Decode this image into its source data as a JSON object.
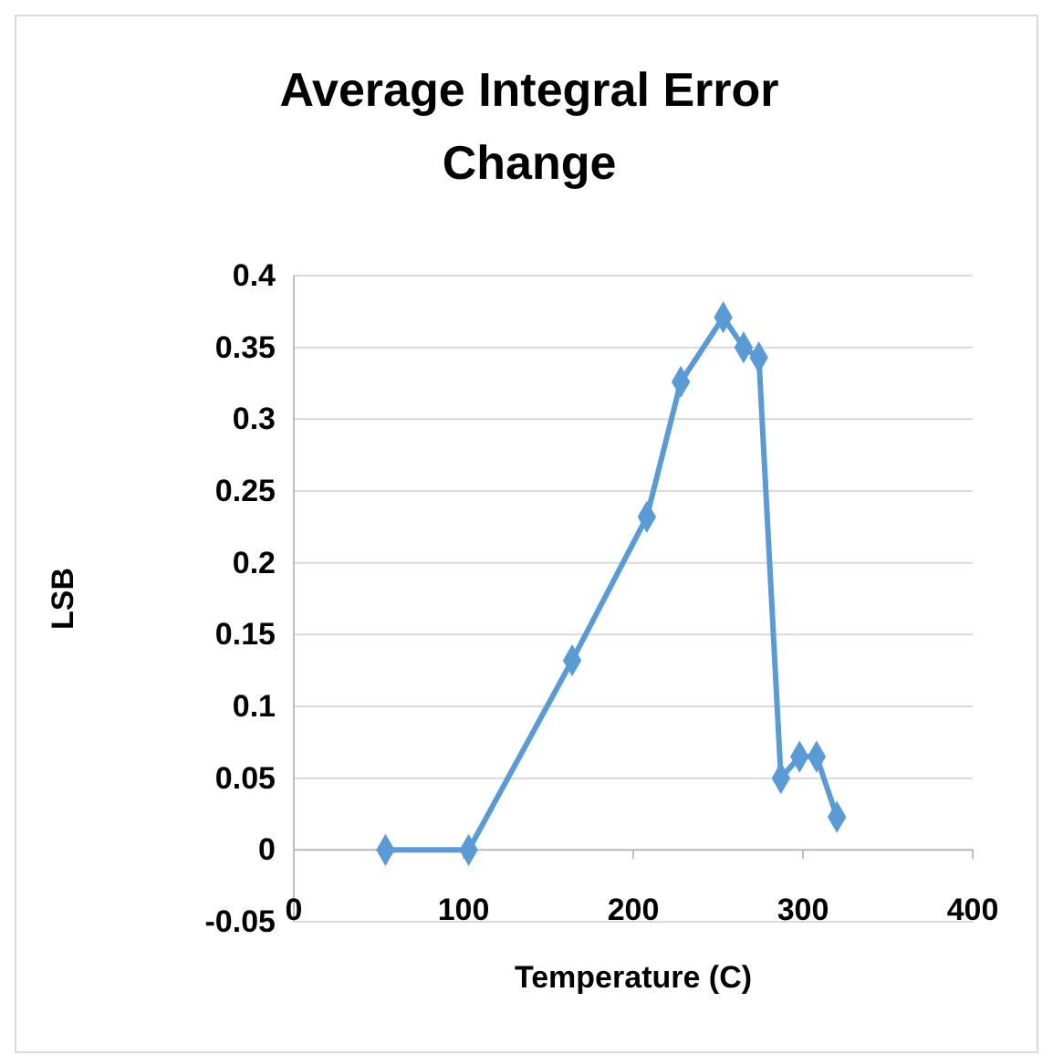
{
  "chart_data": {
    "type": "line",
    "title": "Average Integral Error Change",
    "xlabel": "Temperature (C)",
    "ylabel": "LSB",
    "x": [
      54,
      103,
      164,
      208,
      228,
      253,
      265,
      274,
      287,
      298,
      308,
      320
    ],
    "series": [
      {
        "color": "#5b9bd5",
        "values": [
          0,
          0,
          0.132,
          0.232,
          0.326,
          0.371,
          0.35,
          0.343,
          0.05,
          0.065,
          0.065,
          0.023
        ]
      }
    ],
    "xlim": [
      0,
      400
    ],
    "xticks": [
      0,
      100,
      200,
      300,
      400
    ],
    "ylim": [
      -0.05,
      0.4
    ],
    "yticks": [
      -0.05,
      0,
      0.05,
      0.1,
      0.15,
      0.2,
      0.25,
      0.3,
      0.35,
      0.4
    ],
    "grid": "y",
    "marker": "diamond",
    "line_style": "solid"
  }
}
